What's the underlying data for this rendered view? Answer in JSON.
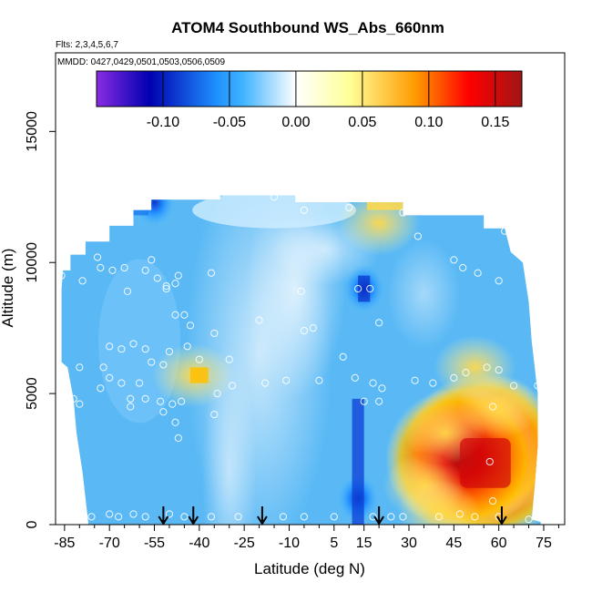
{
  "chart_data": {
    "type": "heatmap",
    "title": "ATOM4 Southbound WS_Abs_660nm",
    "notes": [
      "Flts: 2,3,4,5,6,7",
      "MMDD: 0427,0429,0501,0503,0506,0509"
    ],
    "xlabel": "Latitude (deg N)",
    "ylabel": "Altitude (m)",
    "xlim": [
      -88,
      82
    ],
    "ylim": [
      0,
      18000
    ],
    "x_ticks": [
      -85,
      -70,
      -55,
      -40,
      -25,
      -10,
      5,
      15,
      30,
      45,
      60,
      75
    ],
    "y_ticks": [
      0,
      5000,
      10000,
      15000
    ],
    "colorbar": {
      "range": [
        -0.15,
        0.17
      ],
      "ticks": [
        -0.1,
        -0.05,
        0.0,
        0.05,
        0.1,
        0.15
      ],
      "tick_labels": [
        "-0.10",
        "-0.05",
        "0.00",
        "0.05",
        "0.10",
        "0.15"
      ],
      "colors": [
        "#8a2be2",
        "#0000b0",
        "#1e90ff",
        "#3fb3ff",
        "#ffffff",
        "#ffff99",
        "#ff9a00",
        "#ff0000",
        "#a01515"
      ],
      "color_stops": [
        -0.15,
        -0.11,
        -0.06,
        -0.04,
        0.0,
        0.04,
        0.09,
        0.13,
        0.17
      ]
    },
    "profile_markers_lat": [
      -52,
      -42,
      -19,
      20,
      61
    ],
    "field_samples": [
      {
        "lat": 57,
        "alt": 2200,
        "value": 0.16
      },
      {
        "lat": 55,
        "alt": 3000,
        "value": 0.14
      },
      {
        "lat": 48,
        "alt": 2500,
        "value": 0.12
      },
      {
        "lat": 60,
        "alt": 4500,
        "value": 0.09
      },
      {
        "lat": 42,
        "alt": 3500,
        "value": 0.08
      },
      {
        "lat": 35,
        "alt": 1500,
        "value": 0.06
      },
      {
        "lat": 40,
        "alt": 500,
        "value": 0.04
      },
      {
        "lat": 52,
        "alt": 6000,
        "value": 0.03
      },
      {
        "lat": -42,
        "alt": 5700,
        "value": 0.06
      },
      {
        "lat": 20,
        "alt": 11500,
        "value": 0.03
      },
      {
        "lat": 15,
        "alt": 9000,
        "value": -0.08
      },
      {
        "lat": 13,
        "alt": 1000,
        "value": -0.06
      },
      {
        "lat": -55,
        "alt": 12300,
        "value": -0.05
      }
    ]
  }
}
